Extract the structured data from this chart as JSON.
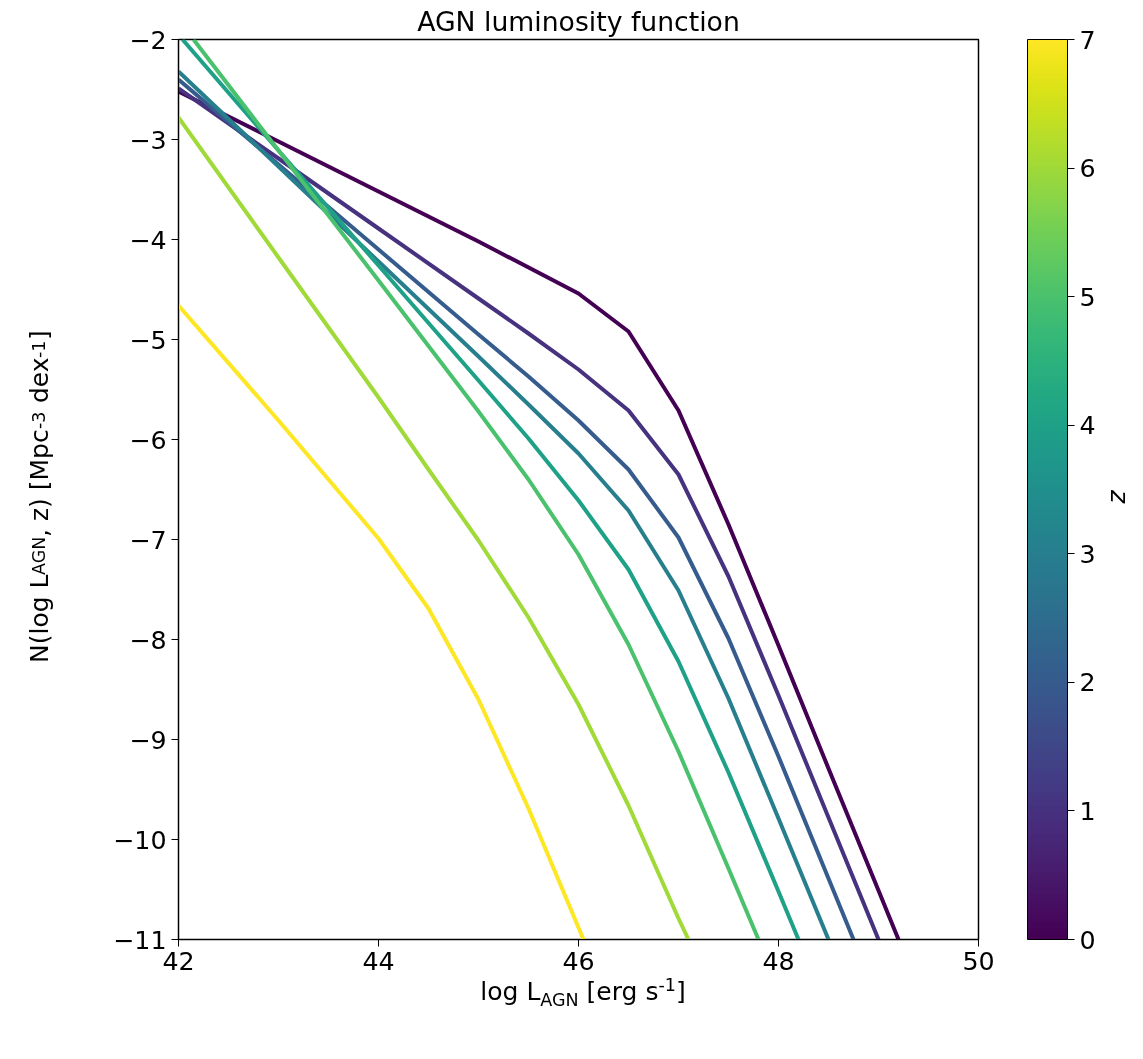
{
  "chart_data": {
    "type": "line",
    "title": "AGN luminosity function",
    "xlabel": "log L$_{AGN}$ [erg s$^{-1}$]",
    "ylabel": "N(log L$_{AGN}$, z) [Mpc$^{-3}$ dex$^{-1}$]",
    "clabel": "z",
    "xlim": [
      42,
      50
    ],
    "ylim": [
      -11,
      -2
    ],
    "xticks": [
      42,
      44,
      46,
      48,
      50
    ],
    "yticks": [
      {
        "value": -2,
        "label": "−2"
      },
      {
        "value": -3,
        "label": "−3"
      },
      {
        "value": -4,
        "label": "−4"
      },
      {
        "value": -5,
        "label": "−5"
      },
      {
        "value": -6,
        "label": "−6"
      },
      {
        "value": -7,
        "label": "−7"
      },
      {
        "value": -8,
        "label": "−8"
      },
      {
        "value": -9,
        "label": "−9"
      },
      {
        "value": -10,
        "label": "−10"
      },
      {
        "value": -11,
        "label": "−11"
      }
    ],
    "clim": [
      0,
      7
    ],
    "cticks": [
      0,
      1,
      2,
      3,
      4,
      5,
      6,
      7
    ],
    "grid": false,
    "marker": "none",
    "line_style": "solid",
    "series": [
      {
        "color": "#440154",
        "x": [
          42,
          43,
          44,
          45,
          46,
          46.5,
          47,
          47.5,
          48,
          48.5,
          49,
          49.2
        ],
        "values": [
          -2.52,
          -3.02,
          -3.52,
          -4.02,
          -4.54,
          -4.92,
          -5.71,
          -6.85,
          -8.06,
          -9.29,
          -10.51,
          -11.0
        ]
      },
      {
        "color": "#46327e",
        "x": [
          42,
          43,
          44,
          45,
          45.5,
          46,
          46.5,
          47,
          47.5,
          48,
          48.5,
          49
        ],
        "values": [
          -2.49,
          -3.19,
          -3.89,
          -4.59,
          -4.94,
          -5.3,
          -5.71,
          -6.35,
          -7.37,
          -8.56,
          -9.78,
          -11.0
        ]
      },
      {
        "color": "#365c8d",
        "x": [
          42,
          43,
          44,
          45,
          45.5,
          46,
          46.5,
          47,
          47.5,
          48,
          48.5,
          48.75
        ],
        "values": [
          -2.4,
          -3.25,
          -4.1,
          -4.95,
          -5.37,
          -5.81,
          -6.3,
          -6.98,
          -7.99,
          -9.17,
          -10.39,
          -11.0
        ]
      },
      {
        "color": "#277f8e",
        "x": [
          42,
          43,
          44,
          45,
          45.5,
          46,
          46.5,
          47,
          47.5,
          48,
          48.5
        ],
        "values": [
          -2.32,
          -3.27,
          -4.22,
          -5.17,
          -5.65,
          -6.14,
          -6.71,
          -7.51,
          -8.59,
          -9.79,
          -11.0
        ]
      },
      {
        "color": "#1fa188",
        "x": [
          42.04,
          43,
          44,
          45,
          45.5,
          46,
          46.5,
          47,
          47.5,
          48,
          48.2
        ],
        "values": [
          -2.0,
          -3.11,
          -4.26,
          -5.41,
          -5.99,
          -6.61,
          -7.3,
          -8.22,
          -9.33,
          -10.52,
          -11.0
        ]
      },
      {
        "color": "#4ac16d",
        "x": [
          42.15,
          43,
          44,
          45,
          45.5,
          46,
          46.5,
          47,
          47.5,
          47.8
        ],
        "values": [
          -2.0,
          -3.11,
          -4.41,
          -5.72,
          -6.4,
          -7.15,
          -8.05,
          -9.12,
          -10.29,
          -11.0
        ]
      },
      {
        "color": "#a0da39",
        "x": [
          42,
          43,
          44,
          44.5,
          45,
          45.5,
          46,
          46.5,
          47,
          47.1
        ],
        "values": [
          -2.78,
          -4.18,
          -5.58,
          -6.3,
          -7.01,
          -7.78,
          -8.65,
          -9.66,
          -10.79,
          -11.0
        ]
      },
      {
        "color": "#fde725",
        "x": [
          42,
          43,
          43.5,
          44,
          44.5,
          45,
          45.5,
          46.05
        ],
        "values": [
          -4.66,
          -5.81,
          -6.4,
          -6.99,
          -7.69,
          -8.6,
          -9.69,
          -11.0
        ]
      }
    ]
  }
}
